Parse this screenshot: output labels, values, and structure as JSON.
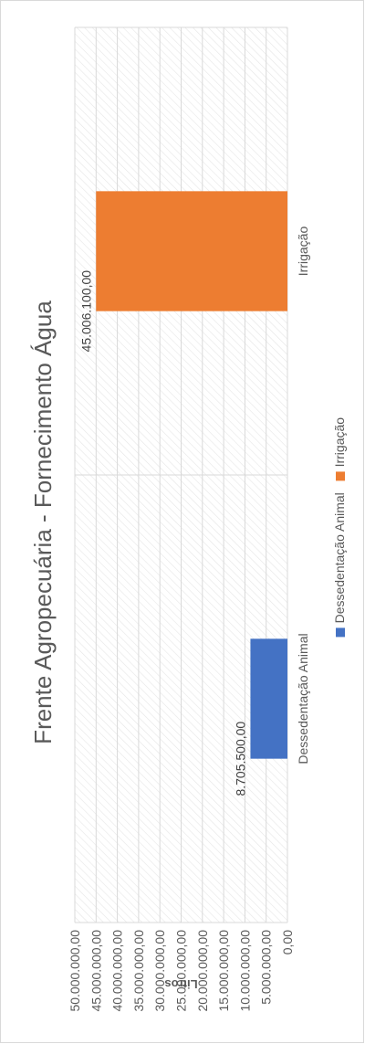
{
  "chart_data": {
    "type": "bar",
    "title": "Frente Agropecuária - Fornecimento Água",
    "ylabel": "Litros",
    "xlabel": "",
    "categories": [
      "Dessedentação Animal",
      "Irrigação"
    ],
    "values": [
      8705500,
      45006100
    ],
    "data_labels": [
      "8.705.500,00",
      "45.006.100,00"
    ],
    "colors": [
      "#4472c4",
      "#ed7d31"
    ],
    "ylim": [
      0,
      50000000
    ],
    "y_ticks": [
      "0,00",
      "5.000.000,00",
      "10.000.000,00",
      "15.000.000,00",
      "20.000.000,00",
      "25.000.000,00",
      "30.000.000,00",
      "35.000.000,00",
      "40.000.000,00",
      "45.000.000,00",
      "50.000.000,00"
    ],
    "legend": [
      {
        "label": "Dessedentação Animal",
        "color": "#4472c4"
      },
      {
        "label": "Irrigação",
        "color": "#ed7d31"
      }
    ],
    "legend_position": "bottom",
    "grid": true,
    "orientation": "rotated 90° counter-clockwise"
  }
}
